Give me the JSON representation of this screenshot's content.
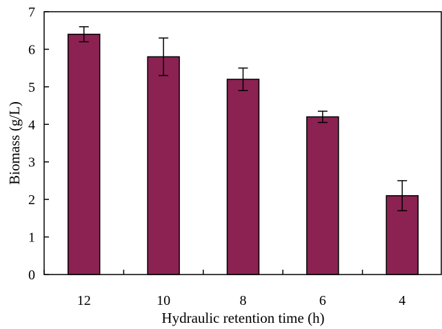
{
  "chart_data": {
    "type": "bar",
    "title": "",
    "xlabel": "Hydraulic retention time (h)",
    "ylabel": "Biomass (g/L)",
    "categories": [
      "12",
      "10",
      "8",
      "6",
      "4"
    ],
    "values": [
      6.4,
      5.8,
      5.2,
      4.2,
      2.1
    ],
    "error_low": [
      0.2,
      0.5,
      0.3,
      0.15,
      0.4
    ],
    "error_high": [
      0.2,
      0.5,
      0.3,
      0.15,
      0.4
    ],
    "ylim": [
      0,
      7
    ],
    "yticks": [
      "0",
      "1",
      "2",
      "3",
      "4",
      "5",
      "6",
      "7"
    ],
    "grid": false,
    "bar_color": "#8b2252",
    "bar_stroke": "#000000"
  }
}
